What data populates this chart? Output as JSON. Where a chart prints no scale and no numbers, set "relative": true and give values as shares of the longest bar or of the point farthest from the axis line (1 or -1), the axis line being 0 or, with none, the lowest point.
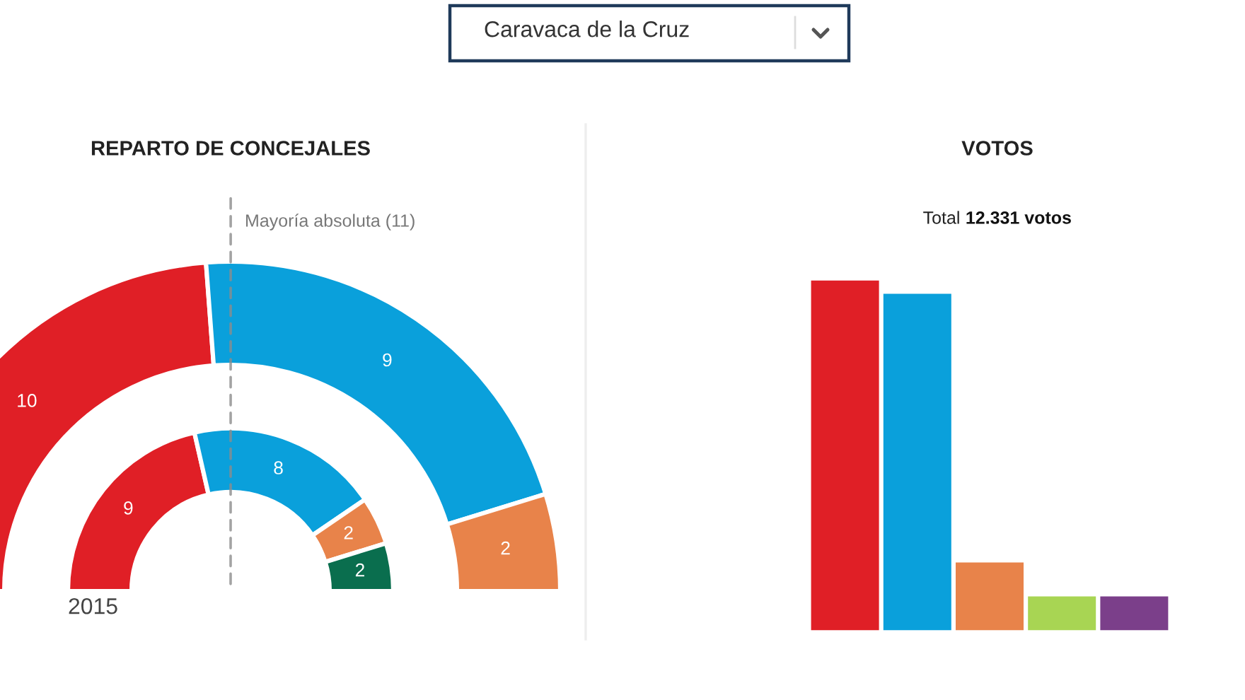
{
  "chart_data": [
    {
      "type": "other",
      "title": "Caravaca de la Cruz"
    },
    {
      "type": "donut",
      "title": "REPARTO DE CONCEJALES",
      "categories": [
        null,
        null,
        null,
        null
      ],
      "colors": [
        "#e01f26",
        "#0aa0db",
        "#e8834a",
        "#0a6e4e"
      ],
      "series": [
        {
          "values": [
            10,
            9,
            2,
            null
          ]
        },
        {
          "name": "2015",
          "values": [
            9,
            8,
            2,
            2
          ]
        }
      ],
      "data_labels": true,
      "annotations": [
        "Mayoría absoluta (11)"
      ]
    },
    {
      "type": "bar",
      "title": "VOTOS",
      "subtitle": "Total 12.331 votos",
      "categories": [
        null,
        null,
        null,
        null,
        null
      ],
      "values": [
        1,
        0.962,
        0.194,
        0.097,
        0.097
      ],
      "colors": [
        "#e01f26",
        "#0aa0db",
        "#e8834a",
        "#a8d553",
        "#7b3f8a"
      ],
      "relative": true
    }
  ]
}
